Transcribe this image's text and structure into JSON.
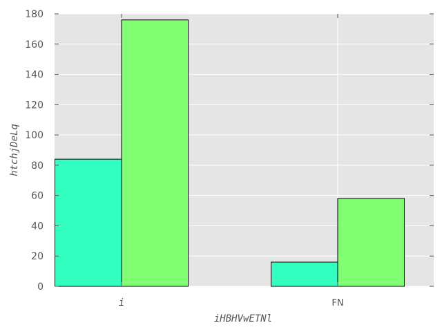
{
  "chart_data": {
    "type": "bar",
    "categories": [
      "i",
      "FN"
    ],
    "series": [
      {
        "values": [
          84,
          16
        ],
        "color": "#33ffc0"
      },
      {
        "values": [
          176,
          58
        ],
        "color": "#80ff73"
      }
    ],
    "xlabel": "iHBHVwETNl",
    "ylabel": "htchjDeLq",
    "ylim": [
      0,
      180
    ],
    "yticks": [
      0,
      20,
      40,
      60,
      80,
      100,
      120,
      140,
      160,
      180
    ],
    "grid": true,
    "legend": "none",
    "background": "#e5e5e5",
    "grid_color": "#ffffff",
    "bar_edge_color": "#000000"
  }
}
